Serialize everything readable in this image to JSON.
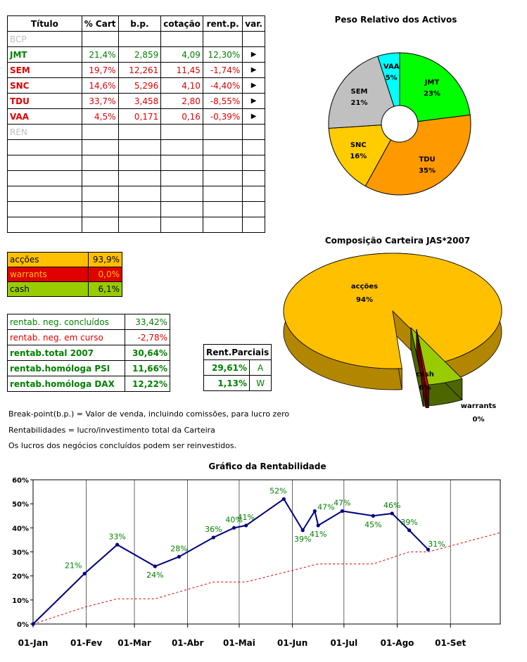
{
  "stocks": {
    "headers": [
      "Título",
      "% Cart",
      "b.p.",
      "cotação",
      "rent.p.",
      "var."
    ],
    "rows": [
      {
        "ticker": "BCP",
        "cart": "",
        "bp": "",
        "cot": "",
        "rent": "",
        "var": "",
        "status": "inactive"
      },
      {
        "ticker": "JMT",
        "cart": "21,4%",
        "bp": "2,859",
        "cot": "4,09",
        "rent": "12,30%",
        "var": "▶",
        "status": "gain"
      },
      {
        "ticker": "SEM",
        "cart": "19,7%",
        "bp": "12,261",
        "cot": "11,45",
        "rent": "-1,74%",
        "var": "▶",
        "status": "loss"
      },
      {
        "ticker": "SNC",
        "cart": "14,6%",
        "bp": "5,296",
        "cot": "4,10",
        "rent": "-4,40%",
        "var": "▶",
        "status": "loss"
      },
      {
        "ticker": "TDU",
        "cart": "33,7%",
        "bp": "3,458",
        "cot": "2,80",
        "rent": "-8,55%",
        "var": "▶",
        "status": "loss"
      },
      {
        "ticker": "VAA",
        "cart": "4,5%",
        "bp": "0,171",
        "cot": "0,16",
        "rent": "-0,39%",
        "var": "▶",
        "status": "loss"
      },
      {
        "ticker": "REN",
        "cart": "",
        "bp": "",
        "cot": "",
        "rent": "",
        "var": "",
        "status": "inactive"
      },
      {
        "ticker": "",
        "cart": "",
        "bp": "",
        "cot": "",
        "rent": "",
        "var": "",
        "status": "empty"
      },
      {
        "ticker": "",
        "cart": "",
        "bp": "",
        "cot": "",
        "rent": "",
        "var": "",
        "status": "empty"
      },
      {
        "ticker": "",
        "cart": "",
        "bp": "",
        "cot": "",
        "rent": "",
        "var": "",
        "status": "empty"
      },
      {
        "ticker": "",
        "cart": "",
        "bp": "",
        "cot": "",
        "rent": "",
        "var": "",
        "status": "empty"
      },
      {
        "ticker": "",
        "cart": "",
        "bp": "",
        "cot": "",
        "rent": "",
        "var": "",
        "status": "empty"
      },
      {
        "ticker": "",
        "cart": "",
        "bp": "",
        "cot": "",
        "rent": "",
        "var": "",
        "status": "empty"
      }
    ]
  },
  "allocation": [
    {
      "label": "acções",
      "value": "93,9%",
      "color": "#ffc000"
    },
    {
      "label": "warrants",
      "value": "0,0%",
      "color": "#e00000"
    },
    {
      "label": "cash",
      "value": "6,1%",
      "color": "#99cc00"
    }
  ],
  "returns": [
    {
      "label": "rentab. neg. concluídos",
      "value": "33,42%",
      "style": "green"
    },
    {
      "label": "rentab. neg. em curso",
      "value": "-2,78%",
      "style": "red"
    },
    {
      "label": "rentab.total 2007",
      "value": "30,64%",
      "style": "green-bold"
    },
    {
      "label": "rentab.homóloga PSI",
      "value": "11,66%",
      "style": "green-bold"
    },
    {
      "label": "rentab.homóloga DAX",
      "value": "12,22%",
      "style": "green-bold"
    }
  ],
  "partial": {
    "header": "Rent.Parciais",
    "rows": [
      {
        "value": "29,61%",
        "tag": "A"
      },
      {
        "value": "1,13%",
        "tag": "W"
      }
    ]
  },
  "notes": [
    "Break-point(b.p.) = Valor de venda, incluindo comissões, para lucro zero",
    "Rentabilidades = lucro/investimento total da Carteira",
    "Os lucros dos negócios concluídos podem ser reinvestidos."
  ],
  "colors": {
    "gain": "#008000",
    "loss": "#e00000",
    "inactive": "#bfbfbf",
    "line_main": "#000080",
    "line_ref": "#e00000",
    "data_label": "#008000"
  },
  "chart_data": [
    {
      "type": "pie",
      "style": "donut",
      "title": "Peso Relativo dos Activos",
      "categories": [
        "JMT",
        "TDU",
        "SNC",
        "SEM",
        "VAA"
      ],
      "values": [
        23,
        35,
        16,
        21,
        5
      ],
      "labels": [
        "23%",
        "35%",
        "16%",
        "21%",
        "5%"
      ],
      "colors": [
        "#00ff00",
        "#ff9900",
        "#ffcc00",
        "#c0c0c0",
        "#00ffff"
      ]
    },
    {
      "type": "pie",
      "style": "3d-exploded",
      "title": "Composição Carteira JAS*2007",
      "categories": [
        "acções",
        "cash",
        "warrants"
      ],
      "values": [
        94,
        6,
        0
      ],
      "labels": [
        "94%",
        "6%",
        "0%"
      ],
      "colors": [
        "#ffc000",
        "#99cc00",
        "#cc0000"
      ]
    },
    {
      "type": "line",
      "title": "Gráfico da Rentabilidade",
      "ylim": [
        0,
        60
      ],
      "yticks": [
        0,
        10,
        20,
        30,
        40,
        50,
        60
      ],
      "ytick_labels": [
        "0%",
        "10%",
        "20%",
        "30%",
        "40%",
        "50%",
        "60%"
      ],
      "xlim": [
        "2007-01-01",
        "2007-09-30"
      ],
      "xticks": [
        "2007-01-01",
        "2007-02-01",
        "2007-03-01",
        "2007-04-01",
        "2007-05-01",
        "2007-06-01",
        "2007-07-01",
        "2007-08-01",
        "2007-09-01"
      ],
      "xtick_labels": [
        "01-Jan",
        "01-Fev",
        "01-Mar",
        "01-Abr",
        "01-Mai",
        "01-Jun",
        "01-Jul",
        "01-Ago",
        "01-Set"
      ],
      "grid": "vertical",
      "series": [
        {
          "style": "solid-markers",
          "points": [
            {
              "x": "2007-01-01",
              "y": 0,
              "label": ""
            },
            {
              "x": "2007-01-31",
              "y": 21,
              "label": "21%"
            },
            {
              "x": "2007-02-19",
              "y": 33,
              "label": "33%"
            },
            {
              "x": "2007-03-13",
              "y": 24,
              "label": "24%"
            },
            {
              "x": "2007-03-27",
              "y": 28,
              "label": "28%"
            },
            {
              "x": "2007-04-16",
              "y": 36,
              "label": "36%"
            },
            {
              "x": "2007-04-28",
              "y": 40,
              "label": "40%"
            },
            {
              "x": "2007-05-05",
              "y": 41,
              "label": "41%"
            },
            {
              "x": "2007-05-27",
              "y": 52,
              "label": "52%"
            },
            {
              "x": "2007-06-07",
              "y": 39,
              "label": "39%"
            },
            {
              "x": "2007-06-14",
              "y": 47,
              "label": "47%"
            },
            {
              "x": "2007-06-16",
              "y": 41,
              "label": "41%"
            },
            {
              "x": "2007-06-30",
              "y": 47,
              "label": "47%"
            },
            {
              "x": "2007-07-18",
              "y": 45,
              "label": "45%"
            },
            {
              "x": "2007-07-29",
              "y": 46,
              "label": "46%"
            },
            {
              "x": "2007-08-08",
              "y": 39,
              "label": "39%"
            },
            {
              "x": "2007-08-19",
              "y": 31,
              "label": "31%"
            }
          ]
        },
        {
          "style": "dashed",
          "points": [
            {
              "x": "2007-01-01",
              "y": 0
            },
            {
              "x": "2007-01-31",
              "y": 7
            },
            {
              "x": "2007-02-19",
              "y": 10.5
            },
            {
              "x": "2007-03-13",
              "y": 10.5
            },
            {
              "x": "2007-04-16",
              "y": 17.5
            },
            {
              "x": "2007-05-05",
              "y": 17.5
            },
            {
              "x": "2007-06-16",
              "y": 25
            },
            {
              "x": "2007-07-18",
              "y": 25
            },
            {
              "x": "2007-08-08",
              "y": 30
            },
            {
              "x": "2007-08-19",
              "y": 30
            },
            {
              "x": "2007-09-30",
              "y": 38
            }
          ]
        }
      ]
    }
  ]
}
